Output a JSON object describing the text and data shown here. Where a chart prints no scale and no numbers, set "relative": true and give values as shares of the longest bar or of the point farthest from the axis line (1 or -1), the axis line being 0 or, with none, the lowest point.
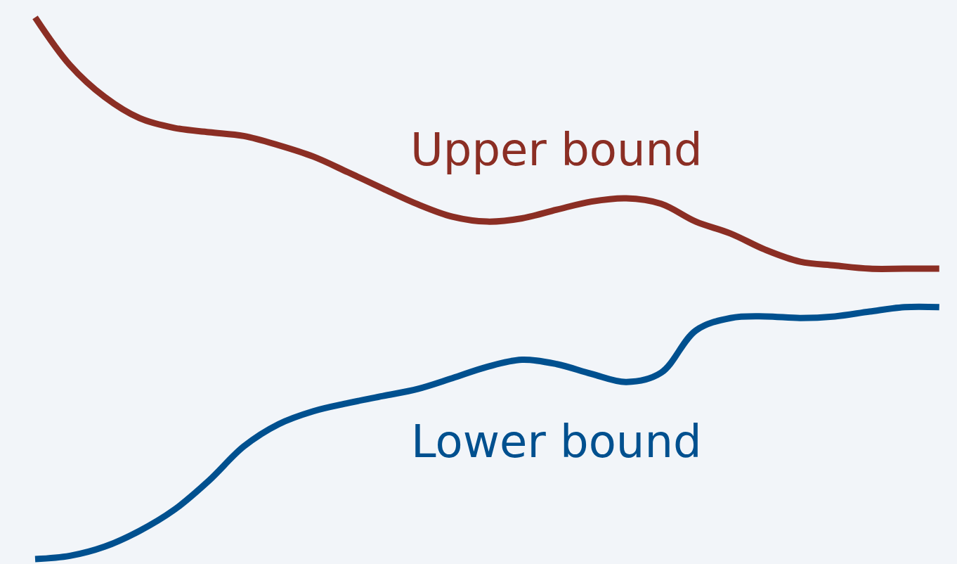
{
  "chart_data": {
    "type": "line",
    "relative": true,
    "categories": [
      null,
      null,
      null,
      null,
      null,
      null,
      null,
      null,
      null,
      null,
      null,
      null,
      null,
      null,
      null,
      null,
      null,
      null,
      null,
      null,
      null,
      null,
      null,
      null,
      null,
      null,
      null
    ],
    "series": [
      {
        "name": "Upper bound",
        "color": "#8b2e24",
        "values": [
          1.0,
          0.912,
          0.853,
          0.814,
          0.796,
          0.788,
          0.781,
          0.764,
          0.743,
          0.714,
          0.684,
          0.655,
          0.632,
          0.623,
          0.629,
          0.645,
          0.66,
          0.666,
          0.656,
          0.623,
          0.601,
          0.571,
          0.549,
          0.542,
          0.536,
          0.536,
          0.536
        ]
      },
      {
        "name": "Lower bound",
        "color": "#00508f",
        "values": [
          0,
          0.006,
          0.023,
          0.052,
          0.091,
          0.145,
          0.208,
          0.249,
          0.273,
          0.288,
          0.301,
          0.314,
          0.334,
          0.355,
          0.368,
          0.36,
          0.342,
          0.327,
          0.344,
          0.422,
          0.445,
          0.448,
          0.445,
          0.448,
          0.457,
          0.465,
          0.465
        ]
      }
    ]
  }
}
